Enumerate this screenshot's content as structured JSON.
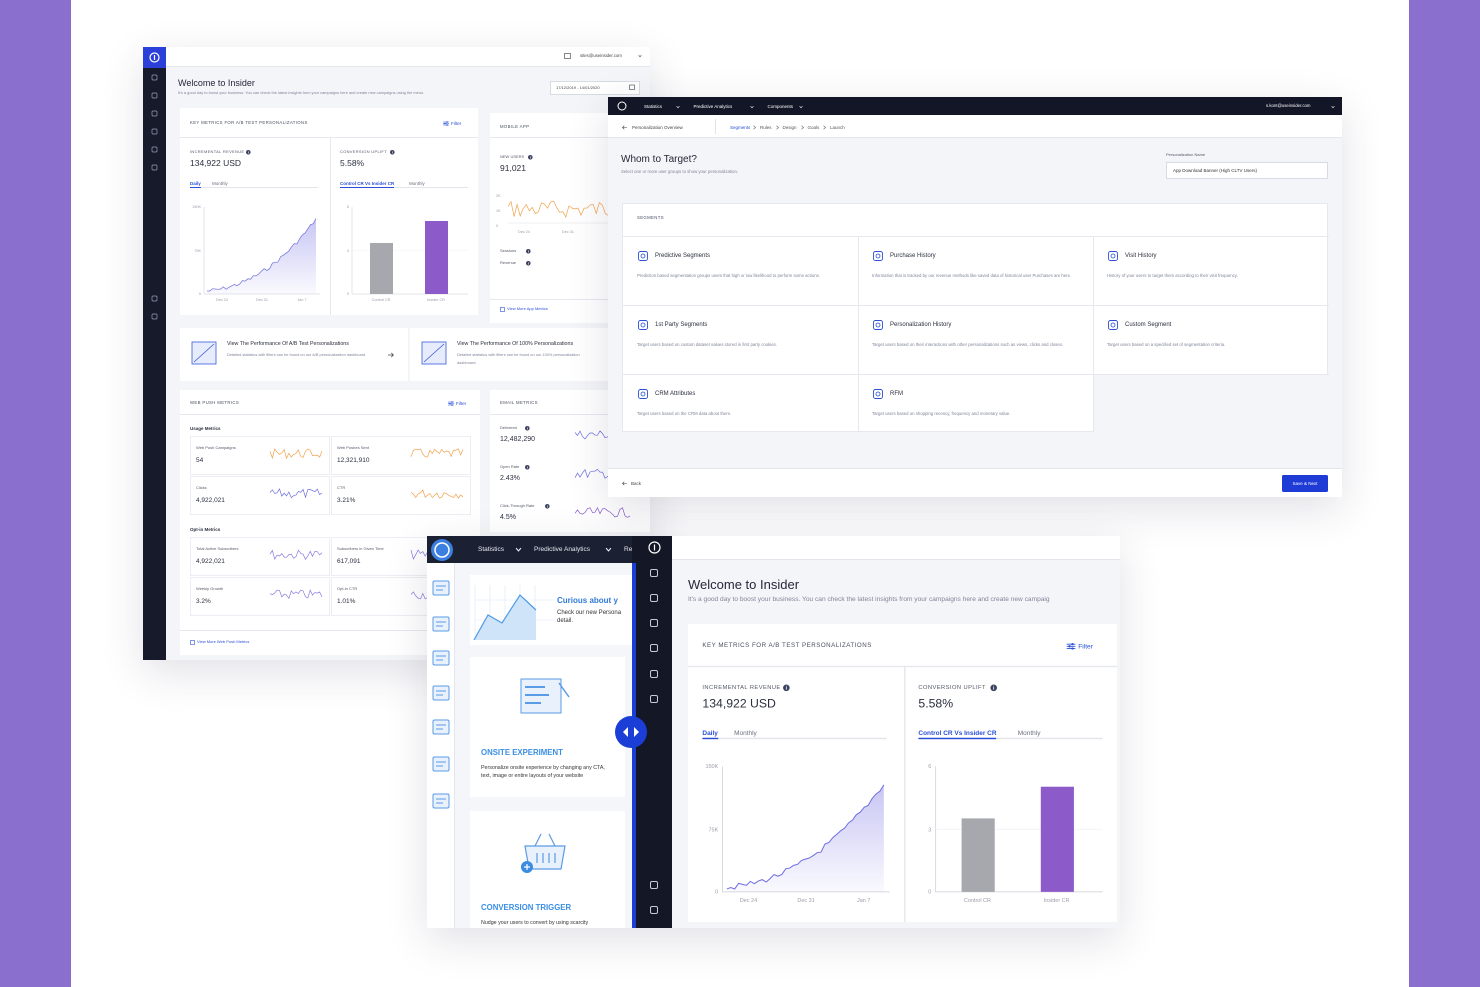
{
  "back_dashboard": {
    "account": "sites@useinsider.com",
    "date_range": "17/12/2019 - 14/01/2020",
    "title": "Welcome to Insider",
    "subtitle": "It's a good day to boost your business. You can check the latest insights from your campaigns here and create new campaigns using the menu.",
    "ab_card": {
      "heading": "KEY METRICS FOR A/B TEST PERSONALIZATIONS",
      "filter": "Filter",
      "revenue": {
        "label": "INCREMENTAL REVENUE",
        "value": "134,922 USD",
        "tabs": [
          "Daily",
          "Monthly"
        ],
        "y_labels": [
          "150K",
          "75K",
          "0"
        ],
        "x_labels": [
          "Dec 24",
          "Dec 31",
          "Jan 7"
        ]
      },
      "uplift": {
        "label": "CONVERSION UPLIFT",
        "value": "5.58%",
        "tabs": [
          "Control CR Vs Insider CR",
          "Monthly"
        ],
        "y_labels": [
          "6",
          "3",
          "0"
        ],
        "x_labels": [
          "Control CR",
          "Insider CR"
        ]
      }
    },
    "mobile_card": {
      "heading": "MOBILE APP",
      "label": "NEW USERS",
      "value": "91,021",
      "y_labels": [
        "2K",
        "1K",
        "0"
      ],
      "x_labels": [
        "Dec 24",
        "Dec 31"
      ],
      "metrics": [
        "Sessions",
        "Revenue"
      ],
      "link": "View More App Metrics"
    },
    "promos": [
      {
        "title": "View The Performance Of A/B Test Personalizations",
        "text": "Detailed statistics with filters can be found on our A/B personalization dashboard."
      },
      {
        "title": "View The Performance Of 100% Personalizations",
        "text": "Detailed statistics with filters can be found on our 100% personalization dashboard."
      }
    ],
    "push_card": {
      "heading": "WEB PUSH METRICS",
      "filter": "Filter",
      "groups": [
        {
          "title": "Usage Metrics",
          "metrics": [
            {
              "label": "Web Push Campaigns",
              "value": "54"
            },
            {
              "label": "Web Pushes Sent",
              "value": "12,321,910"
            },
            {
              "label": "Clicks",
              "value": "4,922,021"
            },
            {
              "label": "CTR",
              "value": "3.21%"
            }
          ]
        },
        {
          "title": "Opt-in Metrics",
          "metrics": [
            {
              "label": "Total Active Subscribers",
              "value": "4,922,021"
            },
            {
              "label": "Subscribers in Given Time",
              "value": "617,091"
            },
            {
              "label": "Weekly Growth",
              "value": "3.2%"
            },
            {
              "label": "Opt-in CTR",
              "value": "1.01%"
            }
          ]
        }
      ],
      "link": "View More Web Push Metrics"
    },
    "email_card": {
      "heading": "EMAIL METRICS",
      "metrics": [
        {
          "label": "Delivered",
          "value": "12,482,290"
        },
        {
          "label": "Open Rate",
          "value": "2.43%"
        },
        {
          "label": "Click-Through Rate",
          "value": "4.5%"
        }
      ]
    }
  },
  "target_window": {
    "nav": [
      "Statistics",
      "Predictive Analytics",
      "Components"
    ],
    "account": "s.kont@useinsider.com",
    "back_link": "Personalization Overview",
    "steps": [
      "Segments",
      "Rules",
      "Design",
      "Goals",
      "Launch"
    ],
    "title": "Whom to Target?",
    "subtitle": "Select one or more user groups to show your personalization.",
    "name_label": "Personalization Name",
    "name_value": "App Download Banner (High CLTV Users)",
    "segments_heading": "SEGMENTS",
    "segments": [
      {
        "title": "Predictive Segments",
        "text": "Prediction based segmentation groups users that high or low likelihood to perform some actions."
      },
      {
        "title": "Purchase History",
        "text": "Information that is tracked by our revenue methods like saved data of historical user Purchases are here."
      },
      {
        "title": "Visit History",
        "text": "History of your users to target them according to their visit frequency."
      },
      {
        "title": "1st Party Segments",
        "text": "Target users based on custom dataset values stored in first party cookies."
      },
      {
        "title": "Personalization History",
        "text": "Target users based on their interactions with other personalizations such as views, clicks and closes."
      },
      {
        "title": "Custom Segment",
        "text": "Target users based on a specified set of segmentation criteria."
      },
      {
        "title": "CRM Attributes",
        "text": "Target users based on the CRM data about them."
      },
      {
        "title": "RFM",
        "text": "Target users based on shopping recency, frequency and monetary value."
      }
    ],
    "back": "Back",
    "save": "Save & Next"
  },
  "front_window": {
    "nav": [
      "Statistics",
      "Predictive Analytics",
      "Re"
    ],
    "promo": {
      "title": "Curious about y",
      "lines": [
        "Check our new Persona",
        "detail."
      ]
    },
    "cards": [
      {
        "title": "ONSITE EXPERIMENT",
        "text": "Personalize onsite experience by changing any CTA, text, image or entire layouts of your website"
      },
      {
        "title": "CONVERSION TRIGGER",
        "text": "Nudge your users to convert by using scarcity"
      }
    ],
    "title": "Welcome to Insider",
    "subtitle": "It's a good day to boost your business. You can check the latest insights from your campaigns here and create new campaig",
    "ab_card": {
      "heading": "KEY METRICS FOR A/B TEST PERSONALIZATIONS",
      "filter": "Filter",
      "revenue": {
        "label": "INCREMENTAL REVENUE",
        "value": "134,922 USD",
        "tabs": [
          "Daily",
          "Monthly"
        ],
        "y_labels": [
          "150K",
          "75K",
          "0"
        ],
        "x_labels": [
          "Dec 24",
          "Dec 31",
          "Jan 7"
        ]
      },
      "uplift": {
        "label": "CONVERSION UPLIFT",
        "value": "5.58%",
        "tabs": [
          "Control CR Vs Insider CR",
          "Monthly"
        ],
        "y_labels": [
          "6",
          "3",
          "0"
        ],
        "x_labels": [
          "Control CR",
          "Insider CR"
        ]
      }
    }
  }
}
